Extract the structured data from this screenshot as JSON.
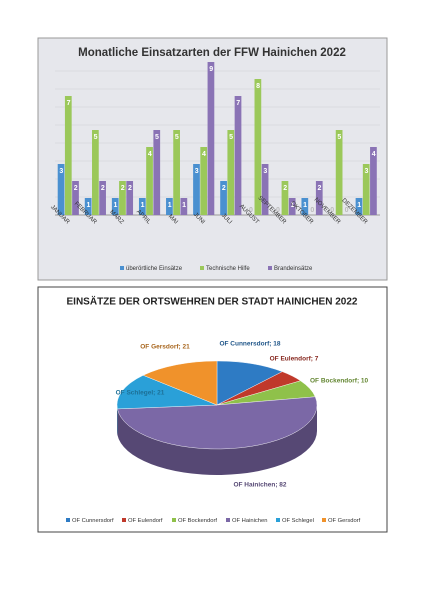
{
  "chart_data": [
    {
      "type": "bar",
      "title": "Monatliche Einsatzarten der FFW Hainichen 2022",
      "categories": [
        "JANUAR",
        "FEBRUAR",
        "MÄRZ",
        "APRIL",
        "MAI",
        "JUNI",
        "JULI",
        "AUGUST",
        "SEPTEMBER",
        "OKTOBER",
        "NOVEMBER",
        "DEZEMBER"
      ],
      "series": [
        {
          "name": "überörtliche Einsätze",
          "color": "#4a90d0",
          "values": [
            3,
            1,
            1,
            1,
            1,
            3,
            2,
            0,
            0,
            1,
            0,
            1
          ]
        },
        {
          "name": "Technische Hilfe",
          "color": "#9bc85a",
          "values": [
            7,
            5,
            2,
            4,
            5,
            4,
            5,
            8,
            2,
            0,
            5,
            3
          ]
        },
        {
          "name": "Brandeinsätze",
          "color": "#8a73b5",
          "values": [
            2,
            2,
            2,
            5,
            1,
            9,
            7,
            3,
            1,
            2,
            0,
            4
          ]
        }
      ],
      "ylim": [
        0,
        10
      ]
    },
    {
      "type": "pie",
      "title": "EINSÄTZE DER ORTSWEHREN DER STADT HAINICHEN 2022",
      "categories": [
        "OF Cunnersdorf",
        "OF Eulendorf",
        "OF Bockendorf",
        "OF Hainichen",
        "OF Schlegel",
        "OF Gersdorf"
      ],
      "values": [
        18,
        7,
        10,
        82,
        21,
        21
      ],
      "value_labels": [
        "OF Cunnersdorf; 18",
        "OF Eulendorf; 7",
        "OF Bockendorf; 10",
        "OF Hainichen; 82",
        "OF Schlegel; 21",
        "OF Gersdorf; 21"
      ],
      "colors": [
        "#2e7bc4",
        "#c0392b",
        "#8fc14a",
        "#7b68a6",
        "#2aa0d8",
        "#f0922b"
      ]
    }
  ]
}
